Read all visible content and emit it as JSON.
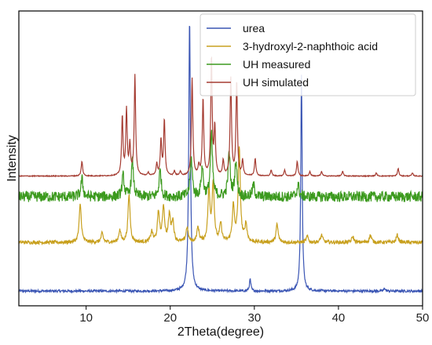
{
  "chart_data": {
    "type": "line",
    "xlabel": "2Theta(degree)",
    "ylabel": "Intensity",
    "xlim": [
      2,
      50
    ],
    "x_ticks": [
      "10",
      "20",
      "30",
      "40",
      "50"
    ],
    "x_tick_values": [
      10,
      20,
      30,
      40,
      50
    ],
    "y_ticks": "none",
    "grid": false,
    "legend_position": "top-right",
    "series": [
      {
        "name": "urea",
        "color": "#3a55b4",
        "baseline": 0.05,
        "noise": 0.004,
        "peaks": [
          [
            22.3,
            0.92,
            0.12
          ],
          [
            29.5,
            0.04,
            0.1
          ],
          [
            35.6,
            0.73,
            0.1
          ],
          [
            45.5,
            0.01,
            0.1
          ]
        ]
      },
      {
        "name": "3-hydroxyl-2-naphthoic acid",
        "color": "#c8a01e",
        "baseline": 0.215,
        "noise": 0.006,
        "peaks": [
          [
            9.3,
            0.13,
            0.15
          ],
          [
            11.9,
            0.03,
            0.15
          ],
          [
            14.0,
            0.04,
            0.15
          ],
          [
            15.1,
            0.16,
            0.15
          ],
          [
            17.8,
            0.035,
            0.15
          ],
          [
            18.6,
            0.1,
            0.15
          ],
          [
            19.2,
            0.12,
            0.15
          ],
          [
            19.9,
            0.09,
            0.15
          ],
          [
            20.3,
            0.07,
            0.15
          ],
          [
            22.0,
            0.05,
            0.15
          ],
          [
            23.3,
            0.05,
            0.15
          ],
          [
            24.6,
            0.17,
            0.15
          ],
          [
            25.1,
            0.2,
            0.15
          ],
          [
            26.0,
            0.06,
            0.15
          ],
          [
            27.5,
            0.12,
            0.15
          ],
          [
            28.2,
            0.32,
            0.15
          ],
          [
            29.0,
            0.06,
            0.15
          ],
          [
            32.7,
            0.06,
            0.15
          ],
          [
            36.3,
            0.02,
            0.15
          ],
          [
            38.0,
            0.025,
            0.15
          ],
          [
            41.7,
            0.02,
            0.15
          ],
          [
            43.8,
            0.025,
            0.15
          ],
          [
            47.0,
            0.025,
            0.15
          ]
        ]
      },
      {
        "name": "UH measured",
        "color": "#3c9a1e",
        "baseline": 0.37,
        "noise": 0.018,
        "peaks": [
          [
            9.5,
            0.06,
            0.15
          ],
          [
            14.4,
            0.07,
            0.15
          ],
          [
            15.5,
            0.12,
            0.15
          ],
          [
            18.8,
            0.09,
            0.15
          ],
          [
            22.5,
            0.13,
            0.15
          ],
          [
            23.8,
            0.1,
            0.15
          ],
          [
            24.9,
            0.21,
            0.15
          ],
          [
            27.0,
            0.15,
            0.15
          ],
          [
            27.8,
            0.12,
            0.15
          ],
          [
            29.9,
            0.04,
            0.15
          ],
          [
            35.2,
            0.04,
            0.15
          ]
        ]
      },
      {
        "name": "UH simulated",
        "color": "#a53c32",
        "baseline": 0.44,
        "noise": 0.0015,
        "peaks": [
          [
            9.5,
            0.05,
            0.1
          ],
          [
            14.3,
            0.2,
            0.1
          ],
          [
            14.8,
            0.22,
            0.1
          ],
          [
            15.2,
            0.1,
            0.1
          ],
          [
            15.8,
            0.34,
            0.1
          ],
          [
            17.4,
            0.01,
            0.1
          ],
          [
            18.4,
            0.04,
            0.1
          ],
          [
            18.9,
            0.12,
            0.1
          ],
          [
            19.3,
            0.19,
            0.1
          ],
          [
            20.5,
            0.015,
            0.1
          ],
          [
            21.2,
            0.015,
            0.1
          ],
          [
            22.6,
            0.33,
            0.1
          ],
          [
            23.4,
            0.03,
            0.1
          ],
          [
            23.9,
            0.26,
            0.1
          ],
          [
            24.9,
            0.4,
            0.1
          ],
          [
            25.3,
            0.16,
            0.1
          ],
          [
            26.3,
            0.05,
            0.1
          ],
          [
            27.2,
            0.33,
            0.1
          ],
          [
            27.9,
            0.32,
            0.1
          ],
          [
            28.6,
            0.05,
            0.1
          ],
          [
            30.1,
            0.06,
            0.1
          ],
          [
            32.0,
            0.02,
            0.1
          ],
          [
            33.6,
            0.02,
            0.1
          ],
          [
            35.1,
            0.05,
            0.1
          ],
          [
            36.6,
            0.015,
            0.1
          ],
          [
            38.0,
            0.015,
            0.1
          ],
          [
            40.5,
            0.015,
            0.1
          ],
          [
            44.5,
            0.01,
            0.1
          ],
          [
            47.1,
            0.025,
            0.1
          ],
          [
            48.8,
            0.01,
            0.1
          ]
        ]
      }
    ]
  }
}
